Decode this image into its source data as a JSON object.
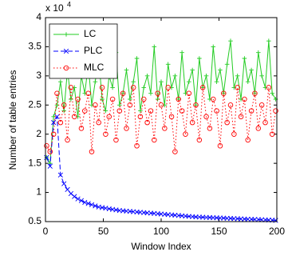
{
  "chart_data": {
    "type": "line",
    "xlabel": "Window Index",
    "ylabel": "Number of table entries",
    "y_scale_label": "x 10",
    "y_scale_exponent": "4",
    "xlim": [
      0,
      200
    ],
    "xticks": [
      0,
      50,
      100,
      150,
      200
    ],
    "ylim": [
      0.5,
      4
    ],
    "yticks": [
      0.5,
      1,
      1.5,
      2,
      2.5,
      3,
      3.5,
      4
    ],
    "legend": "upper left",
    "x": [
      1,
      4,
      7,
      10,
      13,
      16,
      19,
      22,
      25,
      28,
      31,
      34,
      37,
      40,
      43,
      46,
      49,
      52,
      55,
      58,
      61,
      64,
      67,
      70,
      73,
      76,
      79,
      82,
      85,
      88,
      91,
      94,
      97,
      100,
      103,
      106,
      109,
      112,
      115,
      118,
      121,
      124,
      127,
      130,
      133,
      136,
      139,
      142,
      145,
      148,
      151,
      154,
      157,
      160,
      163,
      166,
      169,
      172,
      175,
      178,
      181,
      184,
      187,
      190,
      193,
      196,
      199
    ],
    "series": [
      {
        "name": "LC",
        "color": "#22cc22",
        "line_style": "solid",
        "marker": "+",
        "values": [
          1.6,
          1.5,
          2.3,
          2.5,
          2.9,
          2.4,
          3.1,
          2.6,
          2.8,
          2.3,
          3.0,
          2.7,
          3.2,
          2.5,
          2.9,
          3.3,
          2.6,
          2.4,
          3.0,
          2.8,
          3.4,
          2.5,
          2.7,
          3.1,
          2.6,
          2.9,
          3.3,
          2.4,
          2.8,
          3.0,
          2.7,
          3.5,
          2.6,
          2.9,
          2.5,
          3.2,
          2.8,
          3.0,
          2.6,
          3.4,
          2.7,
          2.9,
          3.1,
          2.5,
          3.3,
          2.8,
          3.0,
          2.6,
          3.5,
          2.9,
          3.1,
          2.7,
          3.2,
          3.6,
          2.8,
          3.0,
          2.6,
          3.3,
          2.9,
          3.1,
          2.7,
          3.4,
          3.0,
          2.8,
          3.6,
          2.7,
          2.6
        ]
      },
      {
        "name": "PLC",
        "color": "#0000ff",
        "line_style": "dashed",
        "marker": "x",
        "values": [
          1.6,
          1.45,
          2.2,
          2.3,
          1.3,
          1.15,
          1.05,
          0.98,
          0.93,
          0.89,
          0.86,
          0.83,
          0.81,
          0.79,
          0.77,
          0.75,
          0.74,
          0.73,
          0.72,
          0.71,
          0.7,
          0.69,
          0.685,
          0.68,
          0.675,
          0.67,
          0.665,
          0.66,
          0.655,
          0.65,
          0.645,
          0.64,
          0.635,
          0.63,
          0.625,
          0.62,
          0.615,
          0.61,
          0.605,
          0.6,
          0.595,
          0.59,
          0.585,
          0.58,
          0.578,
          0.575,
          0.572,
          0.57,
          0.567,
          0.565,
          0.562,
          0.56,
          0.557,
          0.555,
          0.552,
          0.55,
          0.547,
          0.545,
          0.542,
          0.54,
          0.537,
          0.535,
          0.532,
          0.53,
          0.527,
          0.525,
          0.52
        ]
      },
      {
        "name": "MLC",
        "color": "#ff0000",
        "line_style": "dotted",
        "marker": "o",
        "values": [
          1.8,
          1.7,
          2.0,
          2.7,
          2.2,
          2.5,
          1.9,
          2.8,
          2.3,
          2.6,
          2.1,
          2.4,
          2.7,
          1.7,
          2.5,
          2.2,
          2.8,
          2.0,
          2.3,
          2.6,
          1.9,
          2.4,
          2.7,
          2.1,
          2.5,
          2.8,
          1.8,
          2.3,
          2.6,
          2.2,
          2.4,
          1.9,
          2.7,
          2.5,
          2.1,
          2.8,
          2.3,
          1.7,
          2.6,
          2.4,
          2.0,
          2.7,
          2.2,
          2.5,
          1.9,
          2.8,
          2.3,
          2.1,
          2.6,
          2.4,
          1.8,
          2.7,
          2.2,
          2.5,
          2.0,
          2.8,
          2.3,
          2.6,
          1.9,
          2.4,
          2.7,
          2.1,
          2.5,
          2.2,
          2.8,
          2.0,
          2.4
        ]
      }
    ]
  }
}
